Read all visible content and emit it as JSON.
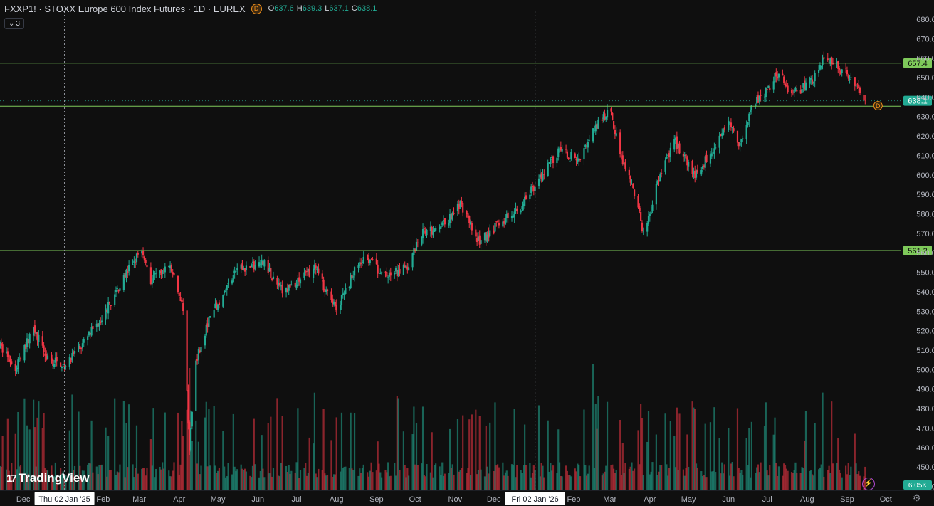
{
  "header": {
    "ticker": "FXXP1!",
    "title": "STOXX Europe 600 Index Futures",
    "interval": "1D",
    "exchange": "EUREX",
    "badge": "D",
    "open_label": "O",
    "open": "637.6",
    "high_label": "H",
    "high": "639.3",
    "low_label": "L",
    "low": "637.1",
    "close_label": "C",
    "close": "638.1"
  },
  "indicator_control": {
    "count": "3"
  },
  "brand": {
    "name": "TradingView"
  },
  "volume_label": "6.05K",
  "colors": {
    "up": "#22ab94",
    "down": "#f23645",
    "hline": "#7ec95a",
    "background": "#0f0f0f",
    "axis_text": "#b2b5be"
  },
  "icons": [
    "tradingview-logo-icon",
    "chevron-down-icon",
    "lightning-icon",
    "gear-icon"
  ],
  "chart_data": {
    "type": "candlestick",
    "y_ticks": [
      "680.0",
      "670.0",
      "660.0",
      "650.0",
      "640.0",
      "630.0",
      "620.0",
      "610.0",
      "600.0",
      "590.0",
      "580.0",
      "570.0",
      "560.0",
      "550.0",
      "540.0",
      "530.0",
      "520.0",
      "510.0",
      "500.0",
      "490.0",
      "480.0",
      "470.0",
      "460.0",
      "450.0",
      "440.0"
    ],
    "ylim": [
      438,
      684
    ],
    "x_labels": [
      "Dec",
      "Feb",
      "Mar",
      "Apr",
      "May",
      "Jun",
      "Jul",
      "Aug",
      "Sep",
      "Oct",
      "Nov",
      "Dec",
      "Feb",
      "Mar",
      "Apr",
      "May",
      "Jun",
      "Jul",
      "Aug",
      "Sep",
      "Oct"
    ],
    "x_label_dates": [
      "2024-12-01",
      "2025-02-01",
      "2025-03-01",
      "2025-04-01",
      "2025-05-01",
      "2025-06-01",
      "2025-07-01",
      "2025-08-01",
      "2025-09-01",
      "2025-10-01",
      "2025-11-01",
      "2025-12-01",
      "2026-02-01",
      "2026-03-01",
      "2026-04-01",
      "2026-05-01",
      "2026-06-01",
      "2026-07-01",
      "2026-08-01",
      "2026-09-01",
      "2026-10-01"
    ],
    "x_range": [
      "2024-11-13",
      "2026-10-13"
    ],
    "date_markers": [
      {
        "label": "Thu 02 Jan '25",
        "date": "2025-01-02"
      },
      {
        "label": "Fri 02 Jan '26",
        "date": "2026-01-02"
      }
    ],
    "horizontal_lines": [
      {
        "value": 657.4,
        "label": "657.4"
      },
      {
        "value": 635.3,
        "label": ""
      },
      {
        "value": 561.2,
        "label": "561.2"
      }
    ],
    "last_price": {
      "value": 638.1,
      "label": "638.1"
    },
    "price_path": [
      [
        "2024-11-13",
        512
      ],
      [
        "2024-11-25",
        500
      ],
      [
        "2024-12-09",
        522
      ],
      [
        "2024-12-20",
        505
      ],
      [
        "2025-01-02",
        503
      ],
      [
        "2025-01-15",
        512
      ],
      [
        "2025-02-03",
        530
      ],
      [
        "2025-02-20",
        551
      ],
      [
        "2025-03-03",
        562
      ],
      [
        "2025-03-10",
        546
      ],
      [
        "2025-03-25",
        553
      ],
      [
        "2025-04-04",
        530
      ],
      [
        "2025-04-09",
        460
      ],
      [
        "2025-04-14",
        505
      ],
      [
        "2025-04-25",
        527
      ],
      [
        "2025-05-15",
        551
      ],
      [
        "2025-06-05",
        555
      ],
      [
        "2025-06-20",
        540
      ],
      [
        "2025-07-03",
        546
      ],
      [
        "2025-07-15",
        552
      ],
      [
        "2025-08-01",
        530
      ],
      [
        "2025-08-15",
        551
      ],
      [
        "2025-08-25",
        558
      ],
      [
        "2025-09-05",
        548
      ],
      [
        "2025-09-25",
        552
      ],
      [
        "2025-10-05",
        570
      ],
      [
        "2025-10-20",
        572
      ],
      [
        "2025-11-05",
        585
      ],
      [
        "2025-11-20",
        565
      ],
      [
        "2025-12-05",
        575
      ],
      [
        "2025-12-20",
        582
      ],
      [
        "2026-01-05",
        598
      ],
      [
        "2026-01-20",
        612
      ],
      [
        "2026-02-05",
        608
      ],
      [
        "2026-02-15",
        622
      ],
      [
        "2026-03-01",
        633
      ],
      [
        "2026-03-10",
        610
      ],
      [
        "2026-03-20",
        590
      ],
      [
        "2026-03-28",
        568
      ],
      [
        "2026-04-05",
        593
      ],
      [
        "2026-04-20",
        618
      ],
      [
        "2026-05-05",
        600
      ],
      [
        "2026-05-20",
        612
      ],
      [
        "2026-06-01",
        630
      ],
      [
        "2026-06-10",
        615
      ],
      [
        "2026-06-20",
        636
      ],
      [
        "2026-07-01",
        644
      ],
      [
        "2026-07-10",
        653
      ],
      [
        "2026-07-20",
        641
      ],
      [
        "2026-08-05",
        648
      ],
      [
        "2026-08-15",
        662
      ],
      [
        "2026-08-25",
        655
      ],
      [
        "2026-09-05",
        650
      ],
      [
        "2026-09-15",
        637
      ]
    ]
  }
}
